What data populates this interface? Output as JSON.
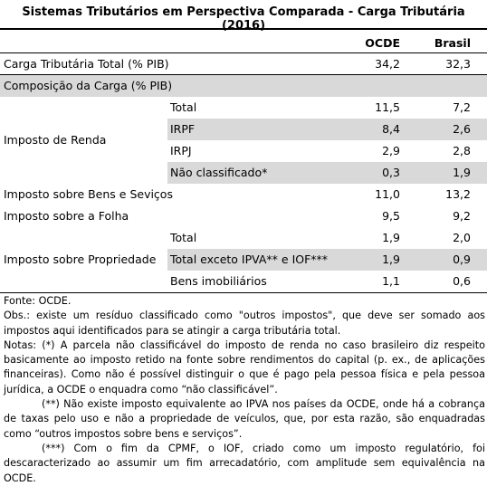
{
  "title": "Sistemas Tributários em Perspectiva Comparada - Carga Tributária (2016)",
  "table": {
    "header": [
      "OCDE",
      "Brasil"
    ],
    "rows": [
      {
        "label": "Carga Tributária Total (% PIB)",
        "values": [
          "34,2",
          "32,3"
        ]
      },
      {
        "label": "Composição da Carga (% PIB)"
      },
      {
        "label": "Imposto de Renda",
        "subrows": [
          {
            "label": "Total",
            "values": [
              "11,5",
              "7,2"
            ]
          },
          {
            "label": "IRPF",
            "values": [
              "8,4",
              "2,6"
            ]
          },
          {
            "label": "IRPJ",
            "values": [
              "2,9",
              "2,8"
            ]
          },
          {
            "label": "Não classificado*",
            "values": [
              "0,3",
              "1,9"
            ]
          }
        ]
      },
      {
        "label": "Imposto sobre Bens e Seviços",
        "values": [
          "11,0",
          "13,2"
        ]
      },
      {
        "label": "Imposto sobre a Folha",
        "values": [
          "9,5",
          "9,2"
        ]
      },
      {
        "label": "Imposto sobre Propriedade",
        "subrows": [
          {
            "label": "Total",
            "values": [
              "1,9",
              "2,0"
            ]
          },
          {
            "label": "Total exceto IPVA** e IOF***",
            "values": [
              "1,9",
              "0,9"
            ]
          },
          {
            "label": "Bens imobiliários",
            "values": [
              "1,1",
              "0,6"
            ]
          }
        ]
      }
    ]
  },
  "notes": [
    "Fonte: OCDE.",
    "Obs.: existe um resíduo classificado como \"outros impostos\", que deve ser somado aos impostos aqui identificados para se atingir a carga tributária total.",
    "Notas: (*) A parcela não classificável do imposto de renda no caso brasileiro diz respeito basicamente ao imposto retido na fonte sobre rendimentos do capital (p. ex., de aplicações financeiras). Como não é possível distinguir o que é pago pela pessoa física e pela pessoa jurídica, a OCDE o enquadra como “não classificável”.",
    "(**) Não existe imposto equivalente ao IPVA nos países da OCDE, onde há a cobrança de taxas pelo uso e não a propriedade de veículos, que, por esta razão, são enquadradas como “outros impostos sobre bens e serviços”.",
    "(***) Com o fim da CPMF, o IOF, criado como um imposto regulatório, foi descaracterizado ao assumir um fim arrecadatório, com amplitude sem equivalência na OCDE."
  ]
}
